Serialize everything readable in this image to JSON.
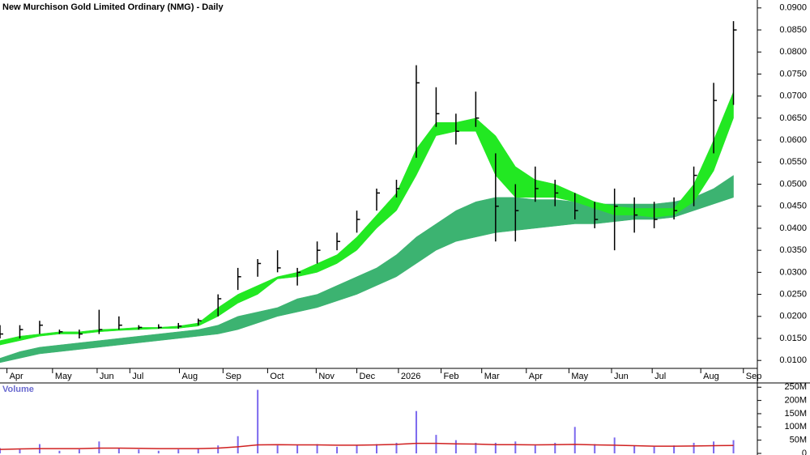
{
  "chart_data": [
    {
      "type": "ohlc",
      "title": "New Murchison Gold Limited Ordinary (NMG) - Daily",
      "color": "#000000",
      "x": [
        0,
        2,
        4,
        6,
        8,
        10,
        12,
        14,
        16,
        18,
        20,
        22,
        24,
        26,
        28,
        30,
        32,
        34,
        36,
        38,
        40,
        42,
        44,
        46,
        48,
        50,
        52,
        54,
        56,
        58,
        60,
        62,
        64,
        66,
        68,
        70,
        72,
        74
      ],
      "high": [
        0.018,
        0.018,
        0.019,
        0.017,
        0.017,
        0.0215,
        0.02,
        0.018,
        0.0182,
        0.0185,
        0.0195,
        0.025,
        0.031,
        0.033,
        0.035,
        0.031,
        0.037,
        0.039,
        0.044,
        0.049,
        0.051,
        0.077,
        0.072,
        0.066,
        0.071,
        0.057,
        0.05,
        0.054,
        0.051,
        0.048,
        0.046,
        0.049,
        0.047,
        0.046,
        0.047,
        0.054,
        0.073,
        0.087
      ],
      "low": [
        0.015,
        0.015,
        0.016,
        0.016,
        0.015,
        0.016,
        0.017,
        0.017,
        0.0172,
        0.0172,
        0.018,
        0.02,
        0.026,
        0.029,
        0.03,
        0.027,
        0.032,
        0.035,
        0.039,
        0.044,
        0.047,
        0.056,
        0.063,
        0.059,
        0.063,
        0.037,
        0.037,
        0.046,
        0.045,
        0.042,
        0.04,
        0.035,
        0.039,
        0.04,
        0.042,
        0.045,
        0.057,
        0.068
      ],
      "close": [
        0.016,
        0.017,
        0.018,
        0.0165,
        0.016,
        0.017,
        0.018,
        0.0175,
        0.0175,
        0.0178,
        0.019,
        0.024,
        0.029,
        0.032,
        0.031,
        0.03,
        0.035,
        0.037,
        0.042,
        0.048,
        0.049,
        0.073,
        0.066,
        0.062,
        0.065,
        0.045,
        0.044,
        0.049,
        0.048,
        0.044,
        0.042,
        0.045,
        0.043,
        0.042,
        0.044,
        0.052,
        0.069,
        0.085
      ],
      "bands": [
        {
          "color": "#3cb371",
          "upper": [
            0.0105,
            0.012,
            0.013,
            0.0135,
            0.014,
            0.0145,
            0.015,
            0.0155,
            0.016,
            0.0165,
            0.017,
            0.018,
            0.02,
            0.021,
            0.022,
            0.024,
            0.025,
            0.027,
            0.029,
            0.031,
            0.034,
            0.038,
            0.041,
            0.044,
            0.046,
            0.047,
            0.047,
            0.0465,
            0.0465,
            0.046,
            0.0455,
            0.0455,
            0.0455,
            0.0455,
            0.046,
            0.047,
            0.049,
            0.052
          ],
          "lower": [
            0.0095,
            0.0105,
            0.0115,
            0.012,
            0.0125,
            0.013,
            0.0135,
            0.014,
            0.0145,
            0.015,
            0.0155,
            0.016,
            0.017,
            0.0185,
            0.02,
            0.021,
            0.022,
            0.0235,
            0.025,
            0.027,
            0.029,
            0.032,
            0.035,
            0.037,
            0.038,
            0.039,
            0.0395,
            0.04,
            0.0405,
            0.041,
            0.041,
            0.0415,
            0.042,
            0.042,
            0.0425,
            0.044,
            0.0455,
            0.047
          ]
        },
        {
          "color": "#22e822",
          "upper": [
            0.0145,
            0.0155,
            0.016,
            0.0165,
            0.0165,
            0.017,
            0.0172,
            0.0175,
            0.0175,
            0.0178,
            0.0185,
            0.022,
            0.025,
            0.027,
            0.029,
            0.03,
            0.032,
            0.034,
            0.038,
            0.043,
            0.048,
            0.058,
            0.064,
            0.064,
            0.065,
            0.061,
            0.054,
            0.051,
            0.05,
            0.048,
            0.046,
            0.045,
            0.0445,
            0.0445,
            0.0445,
            0.05,
            0.06,
            0.071
          ],
          "lower": [
            0.0135,
            0.0145,
            0.0155,
            0.016,
            0.016,
            0.0165,
            0.0168,
            0.017,
            0.0172,
            0.0173,
            0.0178,
            0.02,
            0.023,
            0.025,
            0.0285,
            0.029,
            0.03,
            0.032,
            0.035,
            0.04,
            0.044,
            0.052,
            0.061,
            0.062,
            0.062,
            0.052,
            0.047,
            0.047,
            0.047,
            0.046,
            0.0445,
            0.043,
            0.043,
            0.0425,
            0.043,
            0.046,
            0.053,
            0.065
          ]
        }
      ],
      "xlim": [
        0,
        76
      ],
      "xticks": [
        {
          "value": 0.7,
          "label": "Apr"
        },
        {
          "value": 5.3,
          "label": "May"
        },
        {
          "value": 9.8,
          "label": "Jun"
        },
        {
          "value": 13.1,
          "label": "Jul"
        },
        {
          "value": 18.1,
          "label": "Aug"
        },
        {
          "value": 22.5,
          "label": "Sep"
        },
        {
          "value": 27,
          "label": "Oct"
        },
        {
          "value": 31.9,
          "label": "Nov"
        },
        {
          "value": 36,
          "label": "Dec"
        },
        {
          "value": 40.2,
          "label": "2026"
        },
        {
          "value": 44.5,
          "label": "Feb"
        },
        {
          "value": 48.6,
          "label": "Mar"
        },
        {
          "value": 53.1,
          "label": "Apr"
        },
        {
          "value": 57.4,
          "label": "May"
        },
        {
          "value": 61.7,
          "label": "Jun"
        },
        {
          "value": 65.8,
          "label": "Jul"
        },
        {
          "value": 70.7,
          "label": "Aug"
        },
        {
          "value": 75,
          "label": "Sep"
        }
      ],
      "ylim": [
        0.0082,
        0.0918
      ],
      "yticks": [
        {
          "value": 0.01,
          "label": "0.0100"
        },
        {
          "value": 0.015,
          "label": "0.0150"
        },
        {
          "value": 0.02,
          "label": "0.0200"
        },
        {
          "value": 0.025,
          "label": "0.0250"
        },
        {
          "value": 0.03,
          "label": "0.0300"
        },
        {
          "value": 0.035,
          "label": "0.0350"
        },
        {
          "value": 0.04,
          "label": "0.0400"
        },
        {
          "value": 0.045,
          "label": "0.0450"
        },
        {
          "value": 0.05,
          "label": "0.0500"
        },
        {
          "value": 0.055,
          "label": "0.0550"
        },
        {
          "value": 0.06,
          "label": "0.0600"
        },
        {
          "value": 0.065,
          "label": "0.0650"
        },
        {
          "value": 0.07,
          "label": "0.0700"
        },
        {
          "value": 0.075,
          "label": "0.0750"
        },
        {
          "value": 0.08,
          "label": "0.0800"
        },
        {
          "value": 0.085,
          "label": "0.0850"
        },
        {
          "value": 0.09,
          "label": "0.0900"
        }
      ]
    },
    {
      "type": "bar",
      "title": "Volume",
      "color": "#7b68ee",
      "x": [
        0,
        2,
        4,
        6,
        8,
        10,
        12,
        14,
        16,
        18,
        20,
        22,
        24,
        26,
        28,
        30,
        32,
        34,
        36,
        38,
        40,
        42,
        44,
        46,
        48,
        50,
        52,
        54,
        56,
        58,
        60,
        62,
        64,
        66,
        68,
        70,
        72,
        74
      ],
      "values": [
        20000000,
        15000000,
        35000000,
        10000000,
        15000000,
        45000000,
        20000000,
        15000000,
        10000000,
        15000000,
        20000000,
        30000000,
        65000000,
        240000000,
        30000000,
        30000000,
        35000000,
        25000000,
        30000000,
        35000000,
        40000000,
        160000000,
        70000000,
        50000000,
        40000000,
        40000000,
        45000000,
        30000000,
        40000000,
        100000000,
        35000000,
        60000000,
        30000000,
        25000000,
        30000000,
        40000000,
        45000000,
        50000000
      ],
      "ma": {
        "color": "#d02020",
        "values": [
          15000000,
          17000000,
          18000000,
          18000000,
          18000000,
          20000000,
          20000000,
          19000000,
          18000000,
          18000000,
          18000000,
          20000000,
          25000000,
          32000000,
          33000000,
          32000000,
          32000000,
          31000000,
          31000000,
          32000000,
          34000000,
          38000000,
          38000000,
          36000000,
          35000000,
          33000000,
          33000000,
          32000000,
          33000000,
          34000000,
          32000000,
          31000000,
          29000000,
          27000000,
          27000000,
          28000000,
          29000000,
          30000000
        ]
      },
      "xlim": [
        0,
        76
      ],
      "ylim": [
        0,
        260000000
      ],
      "yticks": [
        0,
        {
          "value": 50000000,
          "label": "50M"
        },
        {
          "value": 100000000,
          "label": "100M"
        },
        {
          "value": 150000000,
          "label": "150M"
        },
        {
          "value": 200000000,
          "label": "200M"
        },
        {
          "value": 250000000,
          "label": "250M"
        }
      ]
    }
  ]
}
